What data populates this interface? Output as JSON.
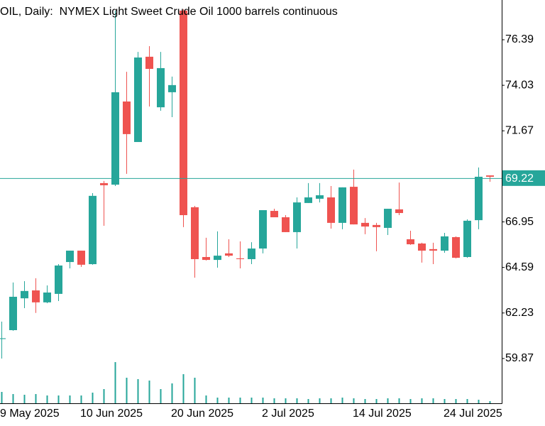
{
  "chart_data": {
    "type": "candlestick",
    "title": "OIL, Daily:  NYMEX Light Sweet Crude Oil 1000 barrels continuous",
    "categories": [
      "9 May 2025",
      null,
      null,
      null,
      null,
      null,
      null,
      null,
      "10 Jun 2025",
      null,
      null,
      null,
      null,
      null,
      null,
      null,
      "20 Jun 2025",
      null,
      null,
      null,
      null,
      null,
      null,
      null,
      "2 Jul 2025",
      null,
      null,
      null,
      null,
      null,
      null,
      null,
      "14 Jul 2025",
      null,
      null,
      null,
      null,
      null,
      null,
      null,
      "24 Jul 2025",
      null,
      null,
      null,
      null
    ],
    "open": [
      null,
      60.88,
      61.34,
      62.99,
      63.4,
      62.78,
      63.22,
      64.87,
      65.46,
      64.76,
      68.96,
      68.88,
      73.19,
      71.09,
      75.51,
      72.89,
      73.67,
      77.9,
      67.71,
      65.13,
      64.98,
      65.32,
      65.06,
      65.02,
      65.57,
      67.52,
      67.19,
      66.42,
      67.93,
      68.15,
      68.22,
      66.9,
      68.77,
      66.9,
      66.79,
      66.64,
      67.6,
      66.05,
      65.83,
      65.54,
      65.46,
      66.16,
      65.13,
      67.04,
      69.36
    ],
    "high": [
      null,
      61.78,
      63.81,
      63.88,
      64.03,
      63.66,
      64.76,
      65.46,
      65.46,
      68.44,
      69.07,
      77.9,
      74.73,
      75.76,
      76.06,
      75.76,
      74.48,
      77.97,
      67.78,
      66.13,
      66.46,
      66.05,
      65.94,
      65.9,
      67.56,
      67.63,
      67.3,
      68.22,
      68.96,
      68.96,
      68.81,
      68.74,
      69.66,
      67.15,
      66.9,
      67.63,
      68.99,
      66.49,
      65.87,
      65.87,
      66.38,
      66.2,
      67.08,
      69.77,
      69.36
    ],
    "low": [
      null,
      59.87,
      61.31,
      62.48,
      62.23,
      62.74,
      62.85,
      64.54,
      64.62,
      64.73,
      66.75,
      68.81,
      69.44,
      71.09,
      72.93,
      72.71,
      72.38,
      66.68,
      64.06,
      64.95,
      64.58,
      65.13,
      64.54,
      64.76,
      65.32,
      67.19,
      66.42,
      65.57,
      67.93,
      67.96,
      66.6,
      66.57,
      66.82,
      66.31,
      65.43,
      66.27,
      67.3,
      65.76,
      64.84,
      64.76,
      65.35,
      65.06,
      65.09,
      66.57,
      69.03
    ],
    "close": [
      null,
      60.92,
      63.07,
      63.37,
      62.78,
      63.29,
      64.69,
      65.46,
      64.73,
      68.3,
      68.85,
      73.67,
      71.5,
      75.47,
      74.88,
      74.92,
      74.04,
      67.3,
      65.02,
      64.98,
      65.2,
      65.2,
      65.02,
      65.57,
      67.56,
      67.19,
      66.42,
      67.96,
      68.22,
      68.33,
      66.9,
      68.74,
      66.82,
      66.71,
      66.68,
      67.63,
      67.41,
      65.79,
      65.46,
      65.46,
      66.2,
      65.09,
      67.01,
      69.29,
      69.29
    ],
    "volume": [
      null,
      16,
      13,
      12,
      13,
      11,
      11,
      11,
      11,
      15,
      20,
      58,
      36,
      34,
      32,
      20,
      28,
      41,
      36,
      11,
      8,
      8,
      8,
      8,
      8,
      7,
      7,
      7,
      6,
      7,
      7,
      8,
      7,
      6,
      6,
      7,
      7,
      6,
      7,
      7,
      6,
      6,
      6,
      5,
      3
    ],
    "up_color": "#26a69a",
    "down_color": "#ef5350",
    "last_price": 69.22,
    "ylim": [
      57.55,
      78.45
    ],
    "yticks": [
      59.87,
      62.23,
      64.59,
      66.95,
      69.22,
      71.67,
      74.03,
      76.39
    ]
  }
}
